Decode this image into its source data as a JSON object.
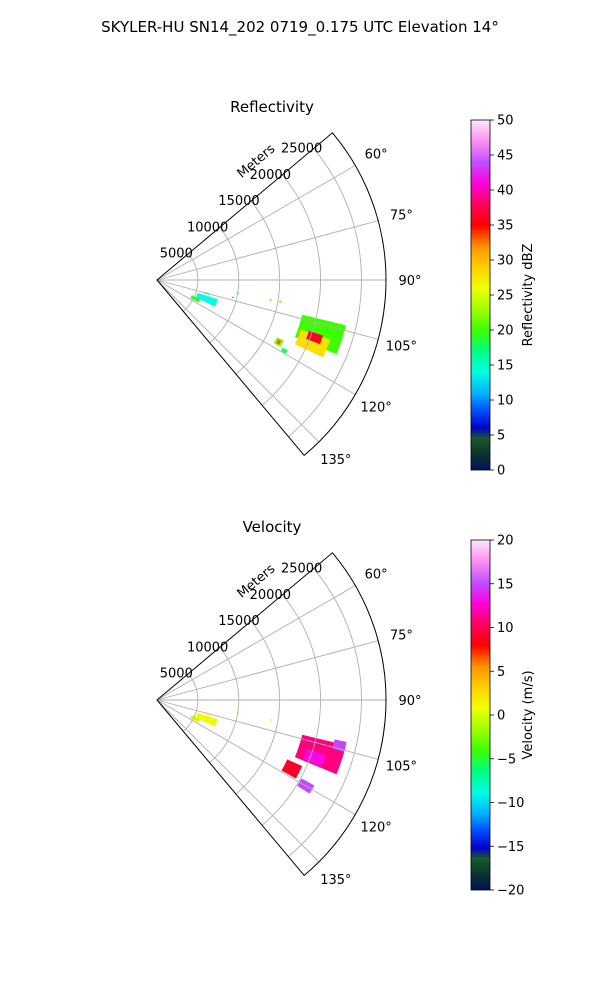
{
  "figure": {
    "suptitle": "SKYLER-HU  SN14_202  0719_0.175 UTC Elevation 14°"
  },
  "chart_data": [
    {
      "type": "heatmap",
      "subtype": "polar-sector-ppi",
      "title": "Reflectivity",
      "radial_axis_label": "Meters",
      "radial_ticks": [
        5000,
        10000,
        15000,
        20000,
        25000
      ],
      "radial_tick_labels": [
        "5000",
        "10000",
        "15000",
        "20000",
        "25000"
      ],
      "rmax": 28000,
      "theta_range_deg": [
        50,
        140
      ],
      "theta_ticks": [
        60,
        75,
        90,
        105,
        120,
        135
      ],
      "theta_tick_labels": [
        "60°",
        "75°",
        "90°",
        "105°",
        "120°",
        "135°"
      ],
      "grid": true,
      "colorbar": {
        "label": "Reflectivity dBZ",
        "range": [
          0,
          50
        ],
        "ticks": [
          0,
          5,
          10,
          15,
          20,
          25,
          30,
          35,
          40,
          45,
          50
        ],
        "tick_labels": [
          "0",
          "5",
          "10",
          "15",
          "20",
          "25",
          "30",
          "35",
          "40",
          "45",
          "50"
        ]
      },
      "regions": [
        {
          "az": 105,
          "r": 6300,
          "dr": 700,
          "daz": 1.5,
          "value": 12
        },
        {
          "az": 111,
          "r": 6500,
          "dr": 2600,
          "daz": 7,
          "value": 14
        },
        {
          "az": 116,
          "r": 5200,
          "dr": 1100,
          "daz": 5,
          "value": 19
        },
        {
          "az": 99,
          "r": 10000,
          "dr": 250,
          "daz": 1,
          "value": 18
        },
        {
          "az": 103,
          "r": 9500,
          "dr": 200,
          "daz": 0.8,
          "value": 10
        },
        {
          "az": 100,
          "r": 14100,
          "dr": 200,
          "daz": 0.8,
          "value": 20
        },
        {
          "az": 100,
          "r": 15300,
          "dr": 250,
          "daz": 1,
          "value": 22
        },
        {
          "az": 108,
          "r": 21000,
          "dr": 5500,
          "daz": 9,
          "value": 20
        },
        {
          "az": 112,
          "r": 20500,
          "dr": 3800,
          "daz": 6,
          "value": 28
        },
        {
          "az": 110,
          "r": 20500,
          "dr": 1800,
          "daz": 3,
          "value": 36
        },
        {
          "az": 117,
          "r": 16700,
          "dr": 900,
          "daz": 3,
          "value": 22
        },
        {
          "az": 117,
          "r": 16700,
          "dr": 450,
          "daz": 1.6,
          "value": 33
        },
        {
          "az": 119,
          "r": 17800,
          "dr": 700,
          "daz": 1.5,
          "value": 18
        }
      ]
    },
    {
      "type": "heatmap",
      "subtype": "polar-sector-ppi",
      "title": "Velocity",
      "radial_axis_label": "Meters",
      "radial_ticks": [
        5000,
        10000,
        15000,
        20000,
        25000
      ],
      "radial_tick_labels": [
        "5000",
        "10000",
        "15000",
        "20000",
        "25000"
      ],
      "rmax": 28000,
      "theta_range_deg": [
        50,
        140
      ],
      "theta_ticks": [
        60,
        75,
        90,
        105,
        120,
        135
      ],
      "theta_tick_labels": [
        "60°",
        "75°",
        "90°",
        "105°",
        "120°",
        "135°"
      ],
      "grid": true,
      "colorbar": {
        "label": "Velocity (m/s)",
        "range": [
          -20,
          20
        ],
        "ticks": [
          -20,
          -15,
          -10,
          -5,
          0,
          5,
          10,
          15,
          20
        ],
        "tick_labels": [
          "−20",
          "−15",
          "−10",
          "−5",
          "0",
          "5",
          "10",
          "15",
          "20"
        ]
      },
      "regions": [
        {
          "az": 105,
          "r": 6300,
          "dr": 700,
          "daz": 1.5,
          "value": 0
        },
        {
          "az": 111,
          "r": 6500,
          "dr": 2600,
          "daz": 7,
          "value": 1
        },
        {
          "az": 116,
          "r": 5200,
          "dr": 1100,
          "daz": 5,
          "value": 0
        },
        {
          "az": 99,
          "r": 10000,
          "dr": 250,
          "daz": 1,
          "value": 2
        },
        {
          "az": 100,
          "r": 14100,
          "dr": 200,
          "daz": 0.8,
          "value": 1
        },
        {
          "az": 108,
          "r": 21000,
          "dr": 5500,
          "daz": 9,
          "value": 11
        },
        {
          "az": 110,
          "r": 20500,
          "dr": 2500,
          "daz": 4,
          "value": 13
        },
        {
          "az": 117,
          "r": 18500,
          "dr": 2000,
          "daz": 5,
          "value": 9
        },
        {
          "az": 120,
          "r": 21000,
          "dr": 1800,
          "daz": 3,
          "value": 15
        },
        {
          "az": 104,
          "r": 23000,
          "dr": 1500,
          "daz": 3,
          "value": 15
        }
      ]
    }
  ]
}
